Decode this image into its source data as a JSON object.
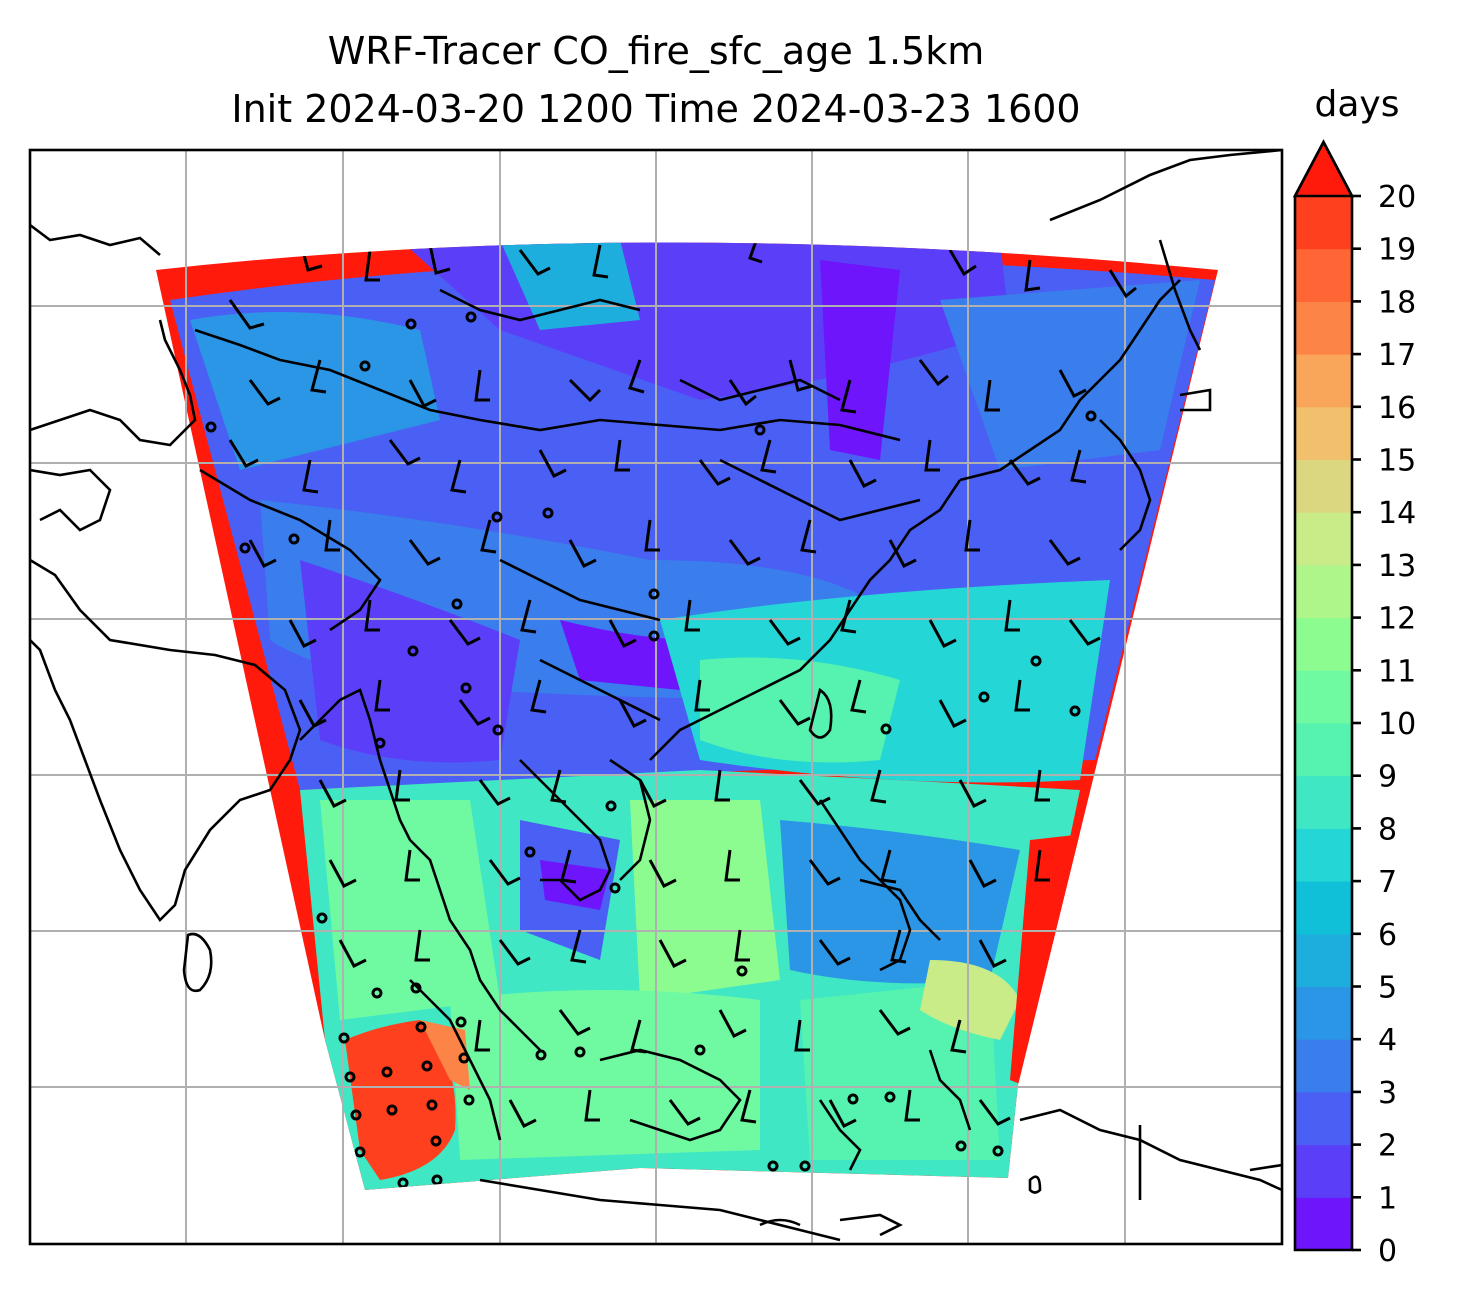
{
  "title": {
    "line1": "WRF-Tracer CO_fire_sfc_age 1.5km",
    "line2": "Init 2024-03-20 1200 Time 2024-03-23 1600"
  },
  "colorbar": {
    "label": "days",
    "min": 0,
    "max": 20,
    "ticks": [
      "0",
      "1",
      "2",
      "3",
      "4",
      "5",
      "6",
      "7",
      "8",
      "9",
      "10",
      "11",
      "12",
      "13",
      "14",
      "15",
      "16",
      "17",
      "18",
      "19",
      "20"
    ],
    "colors": [
      "#6e15fb",
      "#5b3ff8",
      "#4a5ff3",
      "#3a7ded",
      "#2b96e6",
      "#1eaedd",
      "#10c0d8",
      "#24d6d5",
      "#3fe7c4",
      "#55f2b0",
      "#6ffaa1",
      "#8dfc90",
      "#aef58a",
      "#c9ec88",
      "#dbd780",
      "#f2bf6c",
      "#f9a55a",
      "#fc8446",
      "#ff6535",
      "#ff401f"
    ],
    "extend": "max",
    "extend_color": "#ff1a0c"
  },
  "map": {
    "field": "CO_fire_sfc_age",
    "overlay": "wind barbs",
    "grid": true,
    "coastlines": true
  }
}
